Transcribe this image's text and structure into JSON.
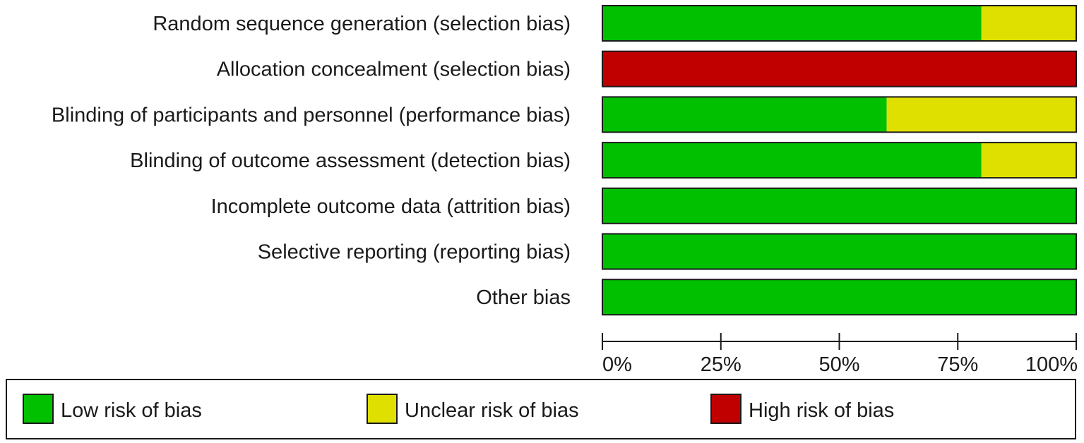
{
  "chart_data": {
    "type": "bar",
    "orientation": "horizontal",
    "stacked": true,
    "percent": true,
    "categories": [
      "Random sequence generation (selection bias)",
      "Allocation concealment (selection bias)",
      "Blinding of participants and personnel (performance bias)",
      "Blinding of outcome assessment (detection bias)",
      "Incomplete outcome data (attrition bias)",
      "Selective reporting (reporting bias)",
      "Other bias"
    ],
    "series": [
      {
        "name": "Low risk of bias",
        "color": "#00c000",
        "values": [
          80,
          0,
          60,
          80,
          100,
          100,
          100
        ]
      },
      {
        "name": "Unclear risk of bias",
        "color": "#e0e000",
        "values": [
          20,
          0,
          40,
          20,
          0,
          0,
          0
        ]
      },
      {
        "name": "High risk of bias",
        "color": "#c00000",
        "values": [
          0,
          100,
          0,
          0,
          0,
          0,
          0
        ]
      }
    ],
    "xlim": [
      0,
      100
    ],
    "xticks": [
      0,
      25,
      50,
      75,
      100
    ],
    "xtick_labels": [
      "0%",
      "25%",
      "50%",
      "75%",
      "100%"
    ],
    "legend_position": "bottom",
    "grid": false
  }
}
